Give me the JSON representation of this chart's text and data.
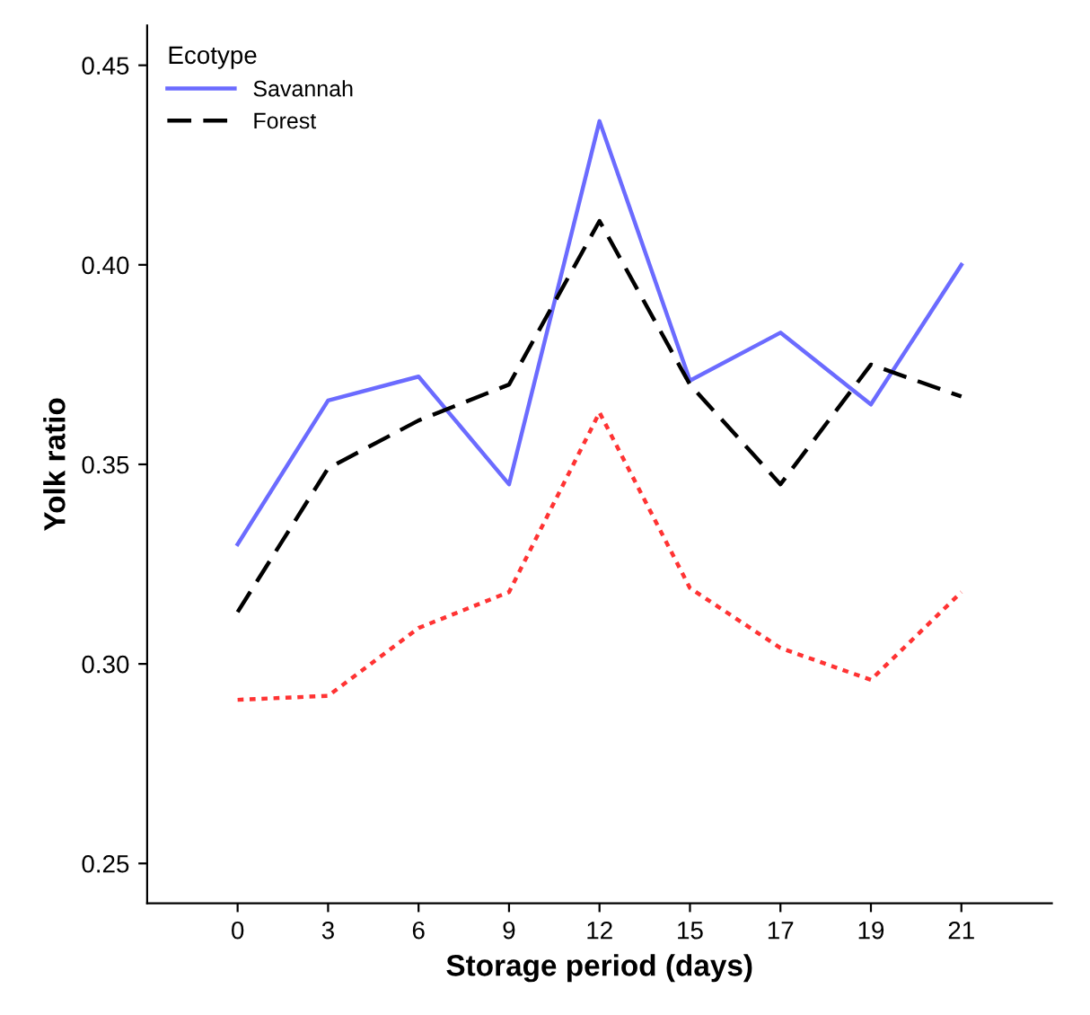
{
  "chart_data": {
    "type": "line",
    "xlabel": "Storage period (days)",
    "ylabel": "Yolk ratio",
    "legend_title": "Ecotype",
    "legend": "top left",
    "grid": false,
    "marker": "none",
    "categories": [
      "0",
      "3",
      "6",
      "9",
      "12",
      "15",
      "17",
      "19",
      "21"
    ],
    "ylim": [
      0.24,
      0.46
    ],
    "yticks": [
      0.25,
      {
        "value": 0.3,
        "label": "0.30"
      },
      0.35,
      {
        "value": 0.4,
        "label": "0.40"
      },
      0.45
    ],
    "series": [
      {
        "name": "Savannah",
        "color": "#6b6bff",
        "line_style": "solid",
        "values": [
          0.33,
          0.366,
          0.372,
          0.345,
          0.436,
          0.371,
          0.383,
          0.365,
          0.4
        ]
      },
      {
        "name": "Forest",
        "color": "#000000",
        "line_style": "dashed",
        "values": [
          0.313,
          0.349,
          0.361,
          0.37,
          0.411,
          0.37,
          0.345,
          0.375,
          0.367
        ]
      },
      {
        "color": "#ff3333",
        "line_style": "dotted",
        "values": [
          0.291,
          0.292,
          0.309,
          0.318,
          0.363,
          0.319,
          0.304,
          0.296,
          0.318
        ]
      }
    ]
  }
}
